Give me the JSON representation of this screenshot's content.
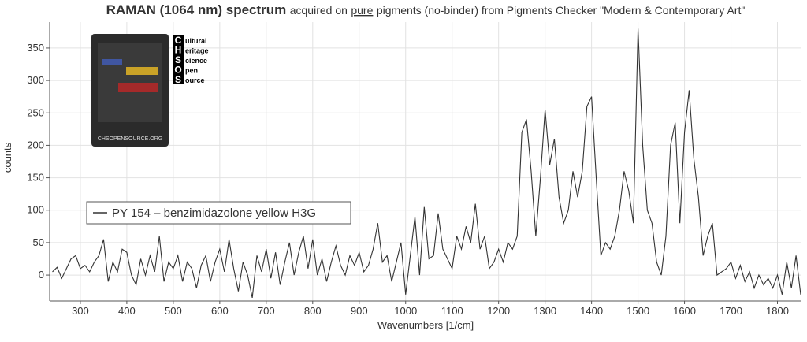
{
  "chart_data": {
    "type": "line",
    "title": "RAMAN (1064 nm) spectrum",
    "subtitle_parts": [
      "acquired on",
      "pure",
      "pigments (no-binder) from Pigments Checker \"Modern & Contemporary Art\""
    ],
    "x_label": "Wavenumbers [1/cm]",
    "y_label": "counts",
    "xlim": [
      234,
      1850
    ],
    "ylim": [
      -40,
      390
    ],
    "xticks": [
      300,
      400,
      500,
      600,
      700,
      800,
      900,
      1000,
      1100,
      1200,
      1300,
      1400,
      1500,
      1600,
      1700,
      1800
    ],
    "yticks": [
      0,
      50,
      100,
      150,
      200,
      250,
      300,
      350
    ],
    "grid": true,
    "legend": "upper left",
    "x": [
      240,
      250,
      260,
      270,
      280,
      290,
      300,
      310,
      320,
      330,
      340,
      350,
      360,
      370,
      380,
      390,
      400,
      410,
      420,
      430,
      440,
      450,
      460,
      470,
      480,
      490,
      500,
      510,
      520,
      530,
      540,
      550,
      560,
      570,
      580,
      590,
      600,
      610,
      620,
      630,
      640,
      650,
      660,
      670,
      680,
      690,
      700,
      710,
      720,
      730,
      740,
      750,
      760,
      770,
      780,
      790,
      800,
      810,
      820,
      830,
      840,
      850,
      860,
      870,
      880,
      890,
      900,
      910,
      920,
      930,
      940,
      950,
      960,
      970,
      980,
      990,
      1000,
      1010,
      1020,
      1030,
      1040,
      1050,
      1060,
      1070,
      1080,
      1090,
      1100,
      1110,
      1120,
      1130,
      1140,
      1150,
      1160,
      1170,
      1180,
      1190,
      1200,
      1210,
      1220,
      1230,
      1240,
      1250,
      1260,
      1270,
      1280,
      1290,
      1300,
      1310,
      1320,
      1330,
      1340,
      1350,
      1360,
      1370,
      1380,
      1390,
      1400,
      1410,
      1420,
      1430,
      1440,
      1450,
      1460,
      1470,
      1480,
      1490,
      1500,
      1510,
      1520,
      1530,
      1540,
      1550,
      1560,
      1570,
      1580,
      1590,
      1600,
      1610,
      1620,
      1630,
      1640,
      1650,
      1660,
      1670,
      1680,
      1690,
      1700,
      1710,
      1720,
      1730,
      1740,
      1750,
      1760,
      1770,
      1780,
      1790,
      1800,
      1810,
      1820,
      1830,
      1840,
      1850
    ],
    "series": [
      {
        "name": "PY 154 – benzimidazolone yellow H3G",
        "color": "#333333",
        "values": [
          5,
          12,
          -5,
          10,
          25,
          30,
          10,
          15,
          5,
          20,
          30,
          55,
          -10,
          20,
          5,
          40,
          35,
          0,
          -15,
          25,
          0,
          30,
          5,
          60,
          -10,
          20,
          10,
          30,
          -10,
          20,
          10,
          -20,
          15,
          30,
          -10,
          20,
          40,
          5,
          55,
          10,
          -25,
          20,
          0,
          -35,
          30,
          5,
          40,
          -5,
          35,
          -15,
          20,
          50,
          0,
          35,
          60,
          10,
          55,
          0,
          25,
          -10,
          20,
          45,
          15,
          0,
          30,
          15,
          35,
          5,
          15,
          40,
          80,
          20,
          30,
          -10,
          20,
          50,
          -30,
          30,
          90,
          0,
          105,
          25,
          30,
          95,
          40,
          25,
          10,
          60,
          40,
          75,
          50,
          110,
          40,
          60,
          10,
          20,
          40,
          20,
          50,
          40,
          60,
          220,
          240,
          160,
          60,
          150,
          255,
          170,
          210,
          120,
          80,
          100,
          160,
          120,
          160,
          260,
          275,
          150,
          30,
          50,
          40,
          60,
          100,
          160,
          130,
          80,
          380,
          200,
          100,
          80,
          20,
          0,
          60,
          200,
          235,
          80,
          220,
          285,
          180,
          120,
          30,
          60,
          80,
          0,
          5,
          10,
          20,
          -5,
          15,
          -10,
          5,
          -20,
          0,
          -15,
          -5,
          -20,
          0,
          -30,
          20,
          -20,
          30,
          -30
        ]
      }
    ]
  },
  "logo": {
    "letters": [
      "C",
      "H",
      "S",
      "O",
      "S"
    ],
    "words": [
      "ultural",
      "eritage",
      "cience",
      "pen",
      "ource"
    ],
    "card_caption": "CHSOPENSOURCE.ORG"
  }
}
